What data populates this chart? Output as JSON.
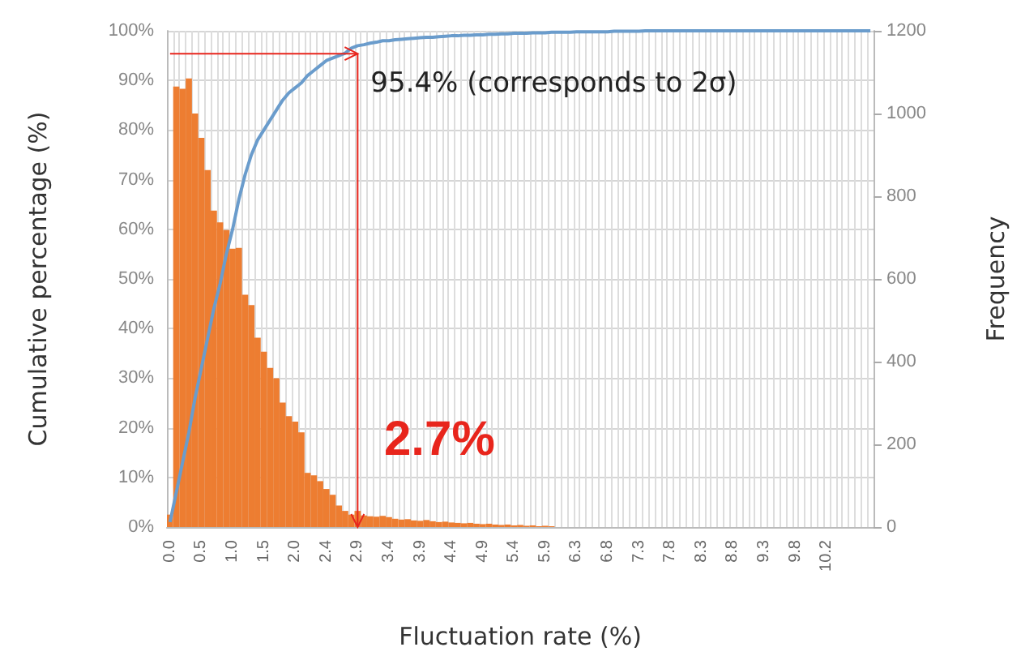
{
  "chart_data": {
    "type": "bar",
    "xlabel": "Fluctuation rate (%)",
    "ylabel": "Cumulative percentage (%)",
    "y2label": "Frequency",
    "categories": [
      "0.0",
      null,
      null,
      null,
      null,
      "0.5",
      null,
      null,
      null,
      null,
      "1.0",
      null,
      null,
      null,
      null,
      "1.5",
      null,
      null,
      null,
      null,
      "2.0",
      null,
      null,
      null,
      null,
      "2.4",
      null,
      null,
      null,
      null,
      "2.9",
      null,
      null,
      null,
      null,
      "3.4",
      null,
      null,
      null,
      null,
      "3.9",
      null,
      null,
      null,
      null,
      "4.4",
      null,
      null,
      null,
      null,
      "4.9",
      null,
      null,
      null,
      null,
      "5.4",
      null,
      null,
      null,
      null,
      "5.9",
      null,
      null,
      null,
      null,
      "6.3",
      null,
      null,
      null,
      null,
      "6.8",
      null,
      null,
      null,
      null,
      "7.3",
      null,
      null,
      null,
      null,
      "7.8",
      null,
      null,
      null,
      null,
      "8.3",
      null,
      null,
      null,
      null,
      "8.8",
      null,
      null,
      null,
      null,
      "9.3",
      null,
      null,
      null,
      null,
      "9.8",
      null,
      null,
      null,
      null,
      "10.2",
      null,
      null,
      null,
      null,
      null,
      null,
      null
    ],
    "series": [
      {
        "axis": "y2",
        "color": "#ed7d31",
        "values": [
          30,
          1065,
          1060,
          1085,
          1000,
          941,
          863,
          765,
          737,
          718,
          673,
          675,
          562,
          537,
          458,
          424,
          385,
          360,
          301,
          268,
          255,
          229,
          131,
          125,
          111,
          92,
          78,
          52,
          39,
          30,
          39,
          28,
          26,
          25,
          27,
          24,
          20,
          18,
          19,
          16,
          15,
          17,
          14,
          12,
          13,
          11,
          10,
          9,
          10,
          8,
          7,
          8,
          6,
          5,
          6,
          4,
          5,
          3,
          4,
          2,
          3,
          2,
          0,
          0,
          0,
          0,
          0,
          0,
          0,
          0,
          0,
          0,
          0,
          0,
          0,
          0,
          0,
          0,
          0,
          0,
          0,
          0,
          0,
          0,
          0,
          0,
          0,
          0,
          0,
          0,
          0,
          0,
          0,
          0,
          0,
          0,
          0,
          0,
          0,
          0,
          0,
          0,
          0,
          0,
          0,
          0,
          0,
          0,
          0,
          0,
          0,
          0,
          0
        ]
      },
      {
        "type": "line",
        "color": "#6a9ccc",
        "values": [
          1,
          7,
          13,
          19,
          26,
          32,
          38,
          44,
          49,
          55,
          60,
          66,
          71,
          75,
          78,
          80,
          82,
          84,
          86,
          87.5,
          88.5,
          89.5,
          91,
          92,
          93,
          94,
          94.5,
          95,
          95.5,
          96.5,
          97,
          97.2,
          97.5,
          97.7,
          98,
          98,
          98.2,
          98.3,
          98.4,
          98.5,
          98.6,
          98.7,
          98.7,
          98.8,
          98.9,
          99,
          99,
          99.1,
          99.1,
          99.2,
          99.2,
          99.3,
          99.3,
          99.4,
          99.4,
          99.5,
          99.5,
          99.5,
          99.6,
          99.6,
          99.6,
          99.7,
          99.7,
          99.7,
          99.7,
          99.8,
          99.8,
          99.8,
          99.8,
          99.8,
          99.8,
          99.9,
          99.9,
          99.9,
          99.9,
          99.9,
          100,
          100,
          100,
          100,
          100,
          100,
          100,
          100,
          100,
          100,
          100,
          100,
          100,
          100,
          100,
          100,
          100,
          100,
          100,
          100,
          100,
          100,
          100,
          100,
          100,
          100,
          100,
          100,
          100,
          100,
          100,
          100,
          100,
          100,
          100,
          100,
          100
        ]
      }
    ],
    "ylim": [
      0,
      100
    ],
    "yticks": [
      {
        "value": 0,
        "label": "0%"
      },
      {
        "value": 10,
        "label": "10%"
      },
      {
        "value": 20,
        "label": "20%"
      },
      {
        "value": 30,
        "label": "30%"
      },
      {
        "value": 40,
        "label": "40%"
      },
      {
        "value": 50,
        "label": "50%"
      },
      {
        "value": 60,
        "label": "60%"
      },
      {
        "value": 70,
        "label": "70%"
      },
      {
        "value": 80,
        "label": "80%"
      },
      {
        "value": 90,
        "label": "90%"
      },
      {
        "value": 100,
        "label": "100%"
      }
    ],
    "y2lim": [
      0,
      1200
    ],
    "y2ticks": [
      0,
      200,
      400,
      600,
      800,
      1000,
      1200
    ],
    "grid": true,
    "marker": "none",
    "annotations": [
      {
        "text": "95.4% (corresponds to 2σ)",
        "x": "2.9",
        "y": 95.4
      },
      "2.7%"
    ]
  }
}
